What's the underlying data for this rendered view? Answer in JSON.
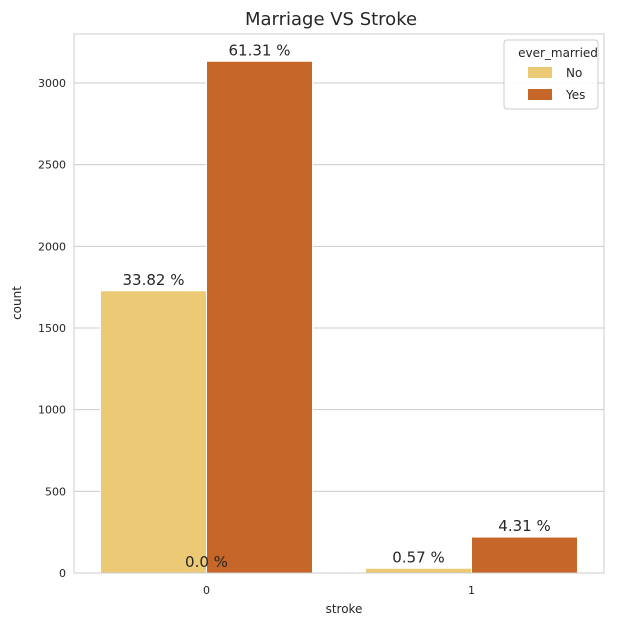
{
  "chart_data": {
    "type": "bar",
    "title": "Marriage VS Stroke",
    "xlabel": "stroke",
    "ylabel": "count",
    "categories": [
      "0",
      "1"
    ],
    "ylim": [
      0,
      3300
    ],
    "yticks": [
      0,
      500,
      1000,
      1500,
      2000,
      2500,
      3000
    ],
    "grid": true,
    "legend": {
      "title": "ever_married",
      "placement": "top-right"
    },
    "series": [
      {
        "name": "No",
        "color": "#ecc974",
        "values": [
          1728,
          29
        ],
        "labels": [
          "33.82 %",
          "0.57 %"
        ]
      },
      {
        "name": "Yes",
        "color": "#c66628",
        "values": [
          3133,
          220
        ],
        "labels": [
          "61.31 %",
          "4.31 %"
        ]
      }
    ],
    "annotations": [
      {
        "text": "0.0 %",
        "category": "0",
        "y": 0
      }
    ]
  }
}
